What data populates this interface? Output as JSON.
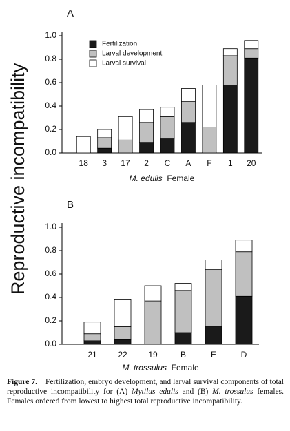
{
  "chart_data": [
    {
      "type": "stacked_bar",
      "panel_label": "A",
      "ylabel": "Reproductive incompatibility",
      "xlabel": [
        "M. edulis",
        "Female"
      ],
      "categories": [
        "18",
        "3",
        "17",
        "2",
        "C",
        "A",
        "F",
        "1",
        "20"
      ],
      "series": [
        {
          "name": "Fertilization",
          "color": "#1a1a1a",
          "values": [
            0,
            0.04,
            0,
            0.09,
            0.12,
            0.26,
            0,
            0.58,
            0.81
          ]
        },
        {
          "name": "Larval development",
          "color": "#c0c0c0",
          "values": [
            0,
            0.09,
            0.11,
            0.17,
            0.19,
            0.18,
            0.22,
            0.25,
            0.08
          ]
        },
        {
          "name": "Larval survival",
          "color": "#ffffff",
          "values": [
            0.14,
            0.07,
            0.2,
            0.11,
            0.08,
            0.11,
            0.36,
            0.06,
            0.07
          ]
        }
      ],
      "ylim": [
        0,
        1.0
      ],
      "yticks": [
        {
          "value": 0,
          "label": "0.0"
        },
        0.2,
        0.4,
        0.6,
        0.8,
        {
          "value": 1,
          "label": "1.0"
        }
      ]
    },
    {
      "type": "stacked_bar",
      "panel_label": "B",
      "xlabel": [
        "M. trossulus",
        "Female"
      ],
      "categories": [
        "21",
        "22",
        "19",
        "B",
        "E",
        "D"
      ],
      "series": [
        {
          "color": "#1a1a1a",
          "values": [
            0.03,
            0.04,
            0,
            0.1,
            0.15,
            0.41
          ]
        },
        {
          "color": "#c0c0c0",
          "values": [
            0.06,
            0.11,
            0.37,
            0.36,
            0.49,
            0.38
          ]
        },
        {
          "color": "#ffffff",
          "values": [
            0.1,
            0.23,
            0.13,
            0.06,
            0.08,
            0.1
          ]
        }
      ],
      "ylim": [
        0,
        1.0
      ],
      "yticks": [
        {
          "value": 0,
          "label": "0.0"
        },
        0.2,
        0.4,
        0.6,
        0.8,
        {
          "value": 1,
          "label": "1.0"
        }
      ]
    }
  ],
  "caption": {
    "label": "Figure 7.",
    "parts": [
      "Fertilization, embryo development, and larval survival components of total reproductive incompatibility for (A) ",
      "Mytilus edulis",
      " and (B) ",
      "M. trossulus",
      " females. Females ordered from lowest to highest total reproductive incompatibility."
    ]
  }
}
